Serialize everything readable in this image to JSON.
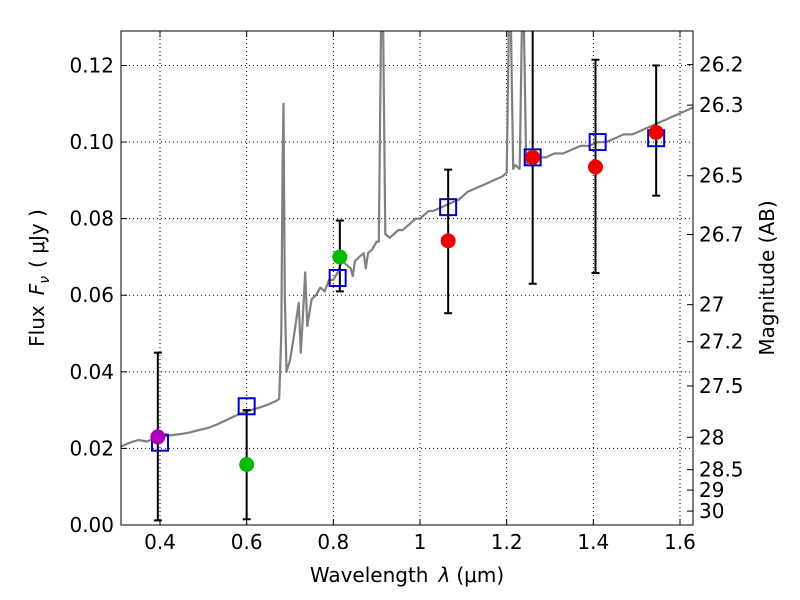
{
  "chart_data": {
    "type": "scatter",
    "xlabel_text": "Wavelength",
    "xlabel_symbol": "λ",
    "xlabel_unit": "(μm)",
    "ylabel_text": "Flux",
    "ylabel_symbol": "F",
    "ylabel_subscript": "ν",
    "ylabel_unit": "( μJy )",
    "y2label": "Magnitude (AB)",
    "xlim": [
      0.31,
      1.63
    ],
    "ylim": [
      0.0,
      0.129
    ],
    "grid": true,
    "x_ticks": [
      {
        "value": 0.4,
        "label": "0.4"
      },
      {
        "value": 0.6,
        "label": "0.6"
      },
      {
        "value": 0.8,
        "label": "0.8"
      },
      {
        "value": 1.0,
        "label": "1"
      },
      {
        "value": 1.2,
        "label": "1.2"
      },
      {
        "value": 1.4,
        "label": "1.4"
      },
      {
        "value": 1.6,
        "label": "1.6"
      }
    ],
    "y_ticks": [
      {
        "value": 0.0,
        "label": "0.00"
      },
      {
        "value": 0.02,
        "label": "0.02"
      },
      {
        "value": 0.04,
        "label": "0.04"
      },
      {
        "value": 0.06,
        "label": "0.06"
      },
      {
        "value": 0.08,
        "label": "0.08"
      },
      {
        "value": 0.1,
        "label": "0.10"
      },
      {
        "value": 0.12,
        "label": "0.12"
      }
    ],
    "mag_ticks": [
      {
        "mag": 26.2,
        "label": "26.2"
      },
      {
        "mag": 26.3,
        "label": "26.3"
      },
      {
        "mag": 26.5,
        "label": "26.5"
      },
      {
        "mag": 26.7,
        "label": "26.7"
      },
      {
        "mag": 27.0,
        "label": "27"
      },
      {
        "mag": 27.2,
        "label": "27.2"
      },
      {
        "mag": 27.5,
        "label": "27.5"
      },
      {
        "mag": 28.0,
        "label": "28"
      },
      {
        "mag": 28.5,
        "label": "28.5"
      },
      {
        "mag": 29.0,
        "label": "29"
      },
      {
        "mag": 30.0,
        "label": "30"
      }
    ],
    "series": [
      {
        "name": "sed-spectrum",
        "kind": "line",
        "color": "#808080",
        "points": [
          [
            0.31,
            0.0205
          ],
          [
            0.33,
            0.0215
          ],
          [
            0.35,
            0.0222
          ],
          [
            0.37,
            0.0218
          ],
          [
            0.39,
            0.0228
          ],
          [
            0.41,
            0.0232
          ],
          [
            0.43,
            0.0235
          ],
          [
            0.45,
            0.0238
          ],
          [
            0.47,
            0.0242
          ],
          [
            0.49,
            0.0248
          ],
          [
            0.51,
            0.0253
          ],
          [
            0.53,
            0.0262
          ],
          [
            0.55,
            0.0272
          ],
          [
            0.57,
            0.0283
          ],
          [
            0.59,
            0.0293
          ],
          [
            0.61,
            0.03
          ],
          [
            0.63,
            0.0307
          ],
          [
            0.65,
            0.0315
          ],
          [
            0.67,
            0.0325
          ],
          [
            0.675,
            0.033
          ],
          [
            0.68,
            0.05
          ],
          [
            0.683,
            0.095
          ],
          [
            0.685,
            0.11
          ],
          [
            0.688,
            0.06
          ],
          [
            0.692,
            0.04
          ],
          [
            0.7,
            0.043
          ],
          [
            0.71,
            0.05
          ],
          [
            0.72,
            0.058
          ],
          [
            0.725,
            0.045
          ],
          [
            0.73,
            0.055
          ],
          [
            0.735,
            0.066
          ],
          [
            0.74,
            0.052
          ],
          [
            0.75,
            0.059
          ],
          [
            0.76,
            0.06
          ],
          [
            0.77,
            0.062
          ],
          [
            0.78,
            0.061
          ],
          [
            0.79,
            0.064
          ],
          [
            0.8,
            0.064
          ],
          [
            0.81,
            0.066
          ],
          [
            0.82,
            0.069
          ],
          [
            0.83,
            0.068
          ],
          [
            0.84,
            0.067
          ],
          [
            0.845,
            0.065
          ],
          [
            0.85,
            0.069
          ],
          [
            0.86,
            0.07
          ],
          [
            0.87,
            0.071
          ],
          [
            0.875,
            0.067
          ],
          [
            0.88,
            0.071
          ],
          [
            0.89,
            0.072
          ],
          [
            0.9,
            0.074
          ],
          [
            0.905,
            0.074
          ],
          [
            0.91,
            0.129
          ],
          [
            0.915,
            0.129
          ],
          [
            0.92,
            0.076
          ],
          [
            0.93,
            0.075
          ],
          [
            0.94,
            0.076
          ],
          [
            0.95,
            0.077
          ],
          [
            0.96,
            0.077
          ],
          [
            0.97,
            0.078
          ],
          [
            0.98,
            0.079
          ],
          [
            0.99,
            0.08
          ],
          [
            1.0,
            0.08
          ],
          [
            1.01,
            0.081
          ],
          [
            1.02,
            0.082
          ],
          [
            1.03,
            0.082
          ],
          [
            1.05,
            0.083
          ],
          [
            1.07,
            0.084
          ],
          [
            1.09,
            0.085
          ],
          [
            1.11,
            0.087
          ],
          [
            1.13,
            0.088
          ],
          [
            1.15,
            0.089
          ],
          [
            1.17,
            0.09
          ],
          [
            1.19,
            0.091
          ],
          [
            1.2,
            0.092
          ],
          [
            1.205,
            0.129
          ],
          [
            1.21,
            0.129
          ],
          [
            1.215,
            0.093
          ],
          [
            1.22,
            0.094
          ],
          [
            1.23,
            0.093
          ],
          [
            1.235,
            0.129
          ],
          [
            1.24,
            0.129
          ],
          [
            1.245,
            0.094
          ],
          [
            1.25,
            0.095
          ],
          [
            1.27,
            0.096
          ],
          [
            1.29,
            0.096
          ],
          [
            1.31,
            0.097
          ],
          [
            1.33,
            0.097
          ],
          [
            1.35,
            0.098
          ],
          [
            1.37,
            0.099
          ],
          [
            1.39,
            0.099
          ],
          [
            1.41,
            0.1
          ],
          [
            1.43,
            0.1
          ],
          [
            1.45,
            0.101
          ],
          [
            1.47,
            0.102
          ],
          [
            1.49,
            0.102
          ],
          [
            1.51,
            0.103
          ],
          [
            1.53,
            0.104
          ],
          [
            1.55,
            0.105
          ],
          [
            1.57,
            0.106
          ],
          [
            1.59,
            0.107
          ],
          [
            1.61,
            0.108
          ],
          [
            1.63,
            0.109
          ]
        ]
      },
      {
        "name": "model-flux",
        "kind": "scatter",
        "marker": "open-square",
        "color": "#0000cc",
        "points": [
          [
            0.4,
            0.0215
          ],
          [
            0.6,
            0.031
          ],
          [
            0.81,
            0.0645
          ],
          [
            1.065,
            0.083
          ],
          [
            1.26,
            0.096
          ],
          [
            1.41,
            0.1
          ],
          [
            1.545,
            0.101
          ]
        ]
      },
      {
        "name": "observed-flux-green",
        "kind": "scatter",
        "marker": "filled-circle",
        "color": "#00bb00",
        "points": [
          [
            0.6,
            0.0158
          ],
          [
            0.815,
            0.07
          ]
        ]
      },
      {
        "name": "observed-flux-magenta",
        "kind": "scatter",
        "marker": "filled-circle",
        "color": "#aa00bb",
        "points": [
          [
            0.395,
            0.023
          ]
        ]
      },
      {
        "name": "observed-flux-red",
        "kind": "scatter",
        "marker": "filled-circle",
        "color": "#ee0000",
        "points": [
          [
            1.065,
            0.0742
          ],
          [
            1.26,
            0.096
          ],
          [
            1.405,
            0.0935
          ],
          [
            1.545,
            0.1025
          ]
        ]
      }
    ],
    "error_bars": [
      {
        "x": 0.395,
        "low": 0.0012,
        "high": 0.045
      },
      {
        "x": 0.6,
        "low": 0.0015,
        "high": 0.03
      },
      {
        "x": 0.815,
        "low": 0.061,
        "high": 0.0795
      },
      {
        "x": 1.065,
        "low": 0.0553,
        "high": 0.0928
      },
      {
        "x": 1.26,
        "low": 0.063,
        "high": 0.13
      },
      {
        "x": 1.405,
        "low": 0.0658,
        "high": 0.1215
      },
      {
        "x": 1.545,
        "low": 0.086,
        "high": 0.12
      }
    ]
  }
}
